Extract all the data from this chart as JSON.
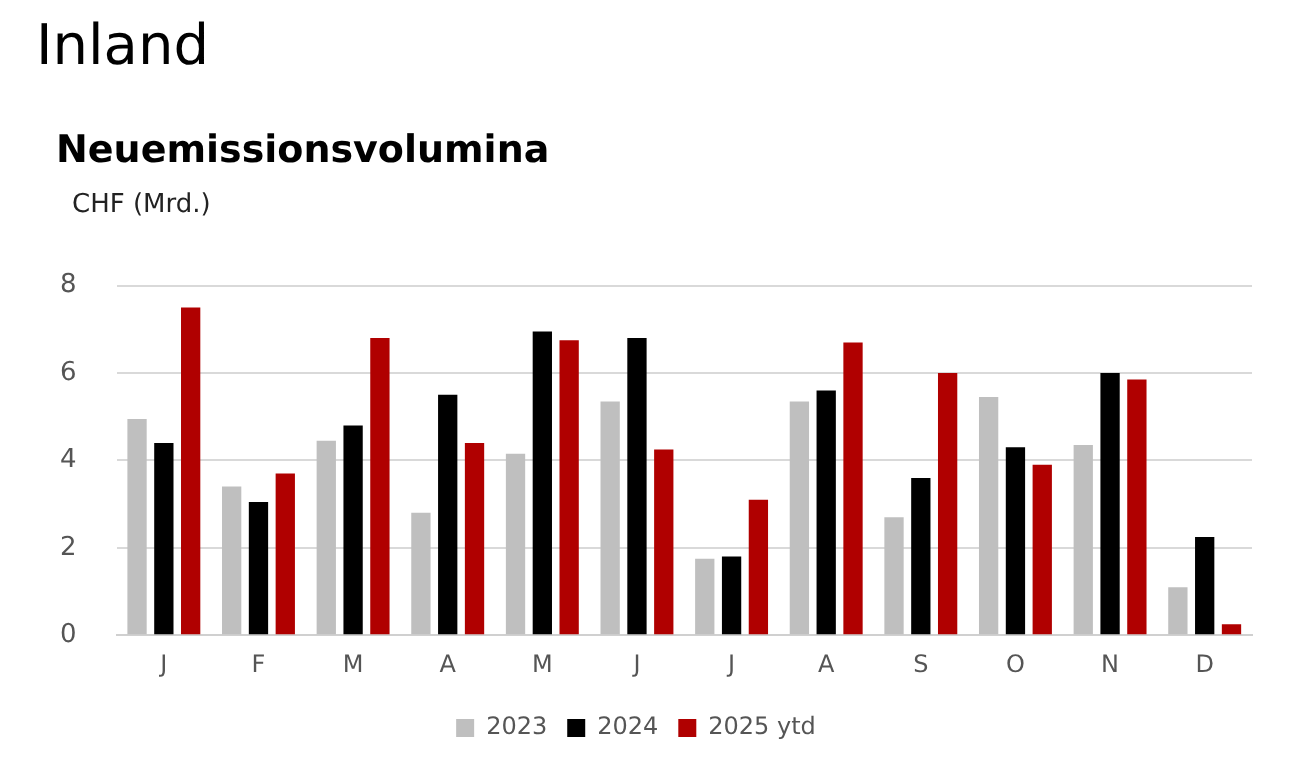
{
  "chart_data": {
    "type": "bar",
    "title": "Inland",
    "subtitle": "Neuemissionsvolumina",
    "ylabel": "CHF (Mrd.)",
    "categories": [
      "J",
      "F",
      "M",
      "A",
      "M",
      "J",
      "J",
      "A",
      "S",
      "O",
      "N",
      "D"
    ],
    "series": [
      {
        "name": "2023",
        "color": "#bfbfbf",
        "values": [
          4.95,
          3.4,
          4.45,
          2.8,
          4.15,
          5.35,
          1.75,
          5.35,
          2.7,
          5.45,
          4.35,
          1.1
        ]
      },
      {
        "name": "2024",
        "color": "#000000",
        "values": [
          4.4,
          3.05,
          4.8,
          5.5,
          6.95,
          6.8,
          1.8,
          5.6,
          3.6,
          4.3,
          6.0,
          2.25
        ]
      },
      {
        "name": "2025 ytd",
        "color": "#b00000",
        "values": [
          7.5,
          3.7,
          6.8,
          4.4,
          6.75,
          4.25,
          3.1,
          6.7,
          6.0,
          3.9,
          5.85,
          0.25
        ]
      }
    ],
    "ylim": [
      0,
      8
    ],
    "yticks": [
      0,
      2,
      4,
      6,
      8
    ],
    "grid": "y",
    "legend": "bottom"
  }
}
